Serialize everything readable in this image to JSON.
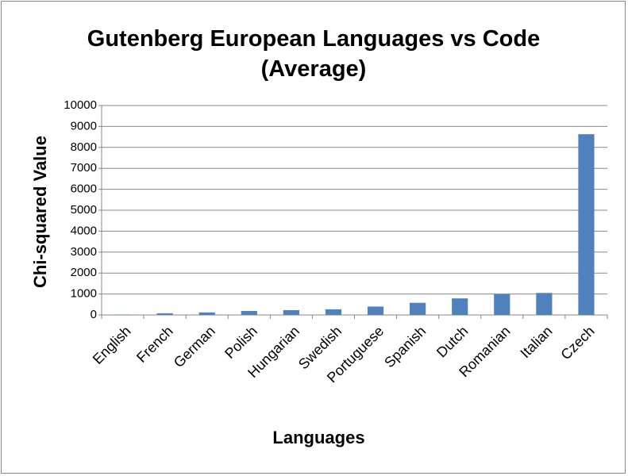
{
  "chart_data": {
    "type": "bar",
    "title": "Gutenberg European Languages vs Code (Average)",
    "x_label": "Languages",
    "y_label": "Chi-squared Value",
    "categories": [
      "English",
      "French",
      "German",
      "Polish",
      "Hungarian",
      "Swedish",
      "Portuguese",
      "Spanish",
      "Dutch",
      "Romanian",
      "Italian",
      "Czech"
    ],
    "values": [
      20,
      80,
      120,
      190,
      230,
      270,
      400,
      580,
      790,
      1000,
      1050,
      8630
    ],
    "color": "#4f81bd",
    "ylim": [
      0,
      10000
    ],
    "yticks": [
      0,
      1000,
      2000,
      3000,
      4000,
      5000,
      6000,
      7000,
      8000,
      9000,
      10000
    ],
    "grid": true
  }
}
